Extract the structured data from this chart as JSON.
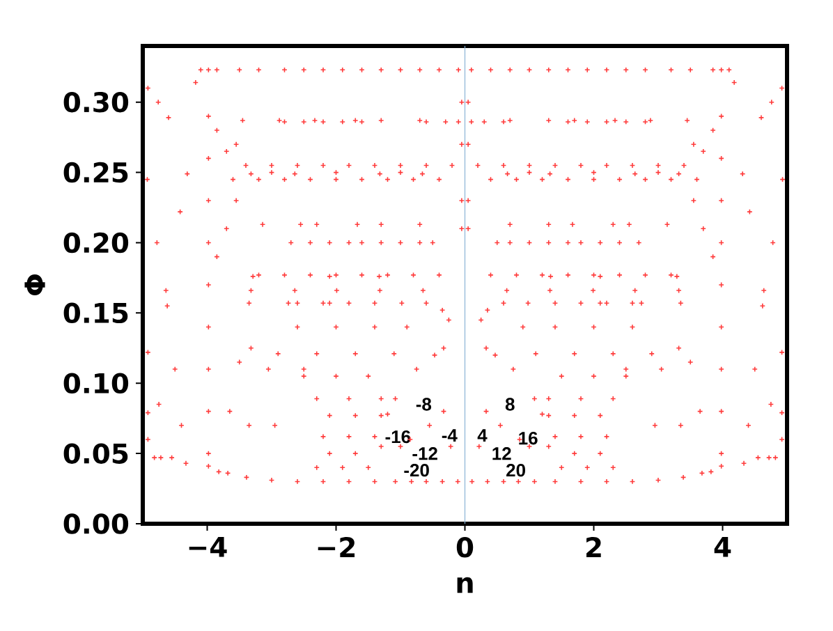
{
  "chart_data": {
    "type": "scatter",
    "xlabel": "n",
    "ylabel": "Φ",
    "color": "#ff3b3b",
    "marker": "cross",
    "xlim": [
      -5,
      5
    ],
    "ylim": [
      0,
      0.34
    ],
    "xticks": [
      {
        "value": -4,
        "label": "−4"
      },
      {
        "value": -2,
        "label": "−2"
      },
      0,
      2,
      4
    ],
    "yticks": [
      {
        "value": 0,
        "label": "0.00"
      },
      {
        "value": 0.05,
        "label": "0.05"
      },
      {
        "value": 0.1,
        "label": "0.10"
      },
      {
        "value": 0.15,
        "label": "0.15"
      },
      {
        "value": 0.2,
        "label": "0.20"
      },
      {
        "value": 0.25,
        "label": "0.25"
      },
      {
        "value": 0.3,
        "label": "0.30"
      }
    ],
    "ref_lines": [
      {
        "axis": "x",
        "value": 0,
        "color": "#8ab4d6"
      }
    ],
    "annotations": [
      "-8",
      "8",
      "-16",
      "-4",
      "4",
      "16",
      "-12",
      "12",
      "-20",
      "20"
    ],
    "x": [
      -3.85,
      -3.5,
      -3.2,
      -2.8,
      -2.5,
      -2.2,
      -1.9,
      -1.6,
      -1.3,
      -1.0,
      -0.7,
      -0.4,
      -0.1,
      -3.98,
      -3.98,
      -3.98,
      -3.98,
      -3.98,
      -3.98,
      -3.98,
      -3.98,
      -3.98,
      -3.98,
      -3.98,
      -3.4,
      -3.0,
      -2.6,
      -2.2,
      -1.8,
      -1.4,
      -1.0,
      -0.6,
      -0.2,
      -3.6,
      -3.2,
      -2.8,
      -2.4,
      -2.0,
      -1.6,
      -1.2,
      -0.8,
      -0.4,
      -2.7,
      -2.4,
      -2.1,
      -1.8,
      -1.6,
      -1.3,
      -1.0,
      -0.7,
      -0.5,
      -2.8,
      -2.5,
      -2.2,
      -1.9,
      -1.6,
      -0.6,
      -0.3,
      -0.1,
      -3.2,
      -2.8,
      -2.4,
      -2.0,
      -1.6,
      -1.2,
      -0.8,
      -0.4,
      -4.64,
      -3.32,
      -2.64,
      -1.99,
      -1.32,
      -0.65,
      -4.31,
      -3.32,
      -2.64,
      -1.32,
      -0.66,
      -4.42,
      -4.93,
      -4.78,
      -4.62,
      -4.5,
      -4.4,
      -4.33,
      -4.92,
      -4.76,
      -4.6,
      -4.18,
      -4.1,
      -4.92,
      -4.75,
      -4.55,
      -4.92,
      -4.72,
      -4.92,
      -4.82,
      -3.35,
      -3.5,
      -3.65,
      -3.82,
      -2.74,
      -3.05,
      -3.35,
      -3.68,
      -2.1,
      -2.5,
      -2.95,
      -3.39,
      -0.6,
      -0.47,
      -0.33,
      -0.22,
      -0.11,
      -0.98,
      -0.75,
      -0.55,
      -0.35,
      -1.08,
      -0.85,
      -0.6,
      -1.2,
      -1.0,
      -0.83,
      -1.3,
      -1.08,
      -3.0,
      -2.6,
      -2.2,
      -1.8,
      -1.4,
      -2.6,
      -2.2,
      -1.8,
      -1.4,
      -2.6,
      -2.0,
      -1.4,
      -0.9,
      -2.9,
      -2.3,
      -1.7,
      -1.1,
      -2.5,
      -2.0,
      -1.5,
      -2.3,
      -1.8,
      -1.3,
      -2.1,
      -1.7,
      -1.3,
      -2.2,
      -1.8,
      -1.4,
      -2.1,
      -1.7,
      -2.3,
      -1.9,
      -1.5,
      -3.32,
      -2.33,
      -2.0,
      -1.67,
      -1.33,
      -1.7,
      -2.3,
      -1.3,
      -1.0,
      -0.7,
      -0.7,
      -1.3,
      -3.45,
      -3.0,
      -2.55,
      -2.1,
      -2.88,
      -3.14,
      -3.29,
      -0.05,
      -0.05,
      -0.05,
      -0.05,
      -0.35,
      -0.25,
      -0.33,
      -3.85,
      -3.7,
      -3.55,
      -3.85,
      -3.7,
      -3.55,
      3.85,
      3.5,
      3.2,
      2.8,
      2.5,
      2.2,
      1.9,
      1.6,
      1.3,
      1.0,
      0.7,
      0.4,
      0.1,
      3.98,
      3.98,
      3.98,
      3.98,
      3.98,
      3.98,
      3.98,
      3.98,
      3.98,
      3.98,
      3.98,
      3.4,
      3.0,
      2.6,
      2.2,
      1.8,
      1.4,
      1.0,
      0.6,
      0.2,
      3.6,
      3.2,
      2.8,
      2.4,
      2.0,
      1.6,
      1.2,
      0.8,
      0.4,
      2.7,
      2.4,
      2.1,
      1.8,
      1.6,
      1.3,
      1.0,
      0.7,
      0.5,
      2.8,
      2.5,
      2.2,
      1.9,
      1.6,
      0.6,
      0.3,
      0.1,
      3.2,
      2.8,
      2.4,
      2.0,
      1.6,
      1.2,
      0.8,
      0.4,
      4.64,
      3.32,
      2.64,
      1.99,
      1.32,
      0.65,
      4.31,
      3.32,
      2.64,
      1.32,
      0.66,
      4.42,
      4.93,
      4.78,
      4.62,
      4.5,
      4.4,
      4.33,
      4.92,
      4.76,
      4.6,
      4.18,
      4.1,
      4.92,
      4.75,
      4.55,
      4.92,
      4.72,
      4.92,
      4.82,
      3.35,
      3.5,
      3.65,
      3.82,
      2.74,
      3.05,
      3.35,
      3.68,
      2.1,
      2.5,
      2.95,
      3.39,
      0.6,
      0.47,
      0.33,
      0.22,
      0.11,
      0.98,
      0.75,
      0.55,
      0.35,
      1.08,
      0.85,
      0.6,
      1.2,
      1.0,
      0.83,
      1.3,
      1.08,
      3.0,
      2.6,
      2.2,
      1.8,
      1.4,
      2.6,
      2.2,
      1.8,
      1.4,
      2.6,
      2.0,
      1.4,
      0.9,
      2.9,
      2.3,
      1.7,
      1.1,
      2.5,
      2.0,
      1.5,
      2.3,
      1.8,
      1.3,
      2.1,
      1.7,
      1.3,
      2.2,
      1.8,
      1.4,
      2.1,
      1.7,
      2.3,
      1.9,
      1.5,
      3.32,
      2.33,
      2.0,
      1.67,
      1.33,
      1.7,
      2.3,
      1.3,
      1.0,
      0.7,
      0.7,
      1.3,
      3.45,
      3.0,
      2.55,
      2.1,
      2.88,
      3.14,
      3.29,
      0.05,
      0.05,
      0.05,
      0.05,
      0.35,
      0.25,
      0.33,
      3.85,
      3.7,
      3.55,
      3.85,
      3.7,
      3.55
    ],
    "values": [
      0.323,
      0.323,
      0.323,
      0.323,
      0.323,
      0.323,
      0.323,
      0.323,
      0.323,
      0.323,
      0.323,
      0.323,
      0.323,
      0.323,
      0.29,
      0.26,
      0.23,
      0.2,
      0.17,
      0.14,
      0.11,
      0.08,
      0.05,
      0.041,
      0.255,
      0.255,
      0.255,
      0.255,
      0.255,
      0.255,
      0.255,
      0.255,
      0.255,
      0.245,
      0.245,
      0.245,
      0.245,
      0.245,
      0.245,
      0.245,
      0.245,
      0.245,
      0.2,
      0.2,
      0.2,
      0.2,
      0.2,
      0.2,
      0.2,
      0.2,
      0.2,
      0.286,
      0.286,
      0.286,
      0.286,
      0.286,
      0.286,
      0.286,
      0.286,
      0.177,
      0.177,
      0.177,
      0.177,
      0.177,
      0.177,
      0.177,
      0.177,
      0.166,
      0.166,
      0.166,
      0.166,
      0.166,
      0.166,
      0.249,
      0.249,
      0.249,
      0.249,
      0.249,
      0.222,
      0.245,
      0.2,
      0.155,
      0.11,
      0.07,
      0.043,
      0.31,
      0.3,
      0.289,
      0.314,
      0.323,
      0.122,
      0.085,
      0.047,
      0.079,
      0.047,
      0.06,
      0.047,
      0.157,
      0.115,
      0.08,
      0.037,
      0.157,
      0.11,
      0.07,
      0.036,
      0.157,
      0.11,
      0.07,
      0.033,
      0.157,
      0.12,
      0.08,
      0.055,
      0.03,
      0.157,
      0.11,
      0.07,
      0.03,
      0.089,
      0.06,
      0.03,
      0.078,
      0.055,
      0.03,
      0.055,
      0.03,
      0.031,
      0.03,
      0.03,
      0.03,
      0.03,
      0.157,
      0.157,
      0.157,
      0.157,
      0.14,
      0.14,
      0.14,
      0.14,
      0.121,
      0.121,
      0.121,
      0.121,
      0.105,
      0.105,
      0.105,
      0.089,
      0.089,
      0.089,
      0.077,
      0.077,
      0.077,
      0.062,
      0.062,
      0.062,
      0.05,
      0.05,
      0.04,
      0.04,
      0.04,
      0.125,
      0.287,
      0.25,
      0.213,
      0.176,
      0.287,
      0.213,
      0.287,
      0.25,
      0.213,
      0.287,
      0.213,
      0.287,
      0.25,
      0.213,
      0.176,
      0.287,
      0.213,
      0.176,
      0.3,
      0.27,
      0.23,
      0.21,
      0.152,
      0.145,
      0.125,
      0.19,
      0.21,
      0.23,
      0.28,
      0.265,
      0.27,
      0.323,
      0.323,
      0.323,
      0.323,
      0.323,
      0.323,
      0.323,
      0.323,
      0.323,
      0.323,
      0.323,
      0.323,
      0.323,
      0.323,
      0.29,
      0.26,
      0.23,
      0.2,
      0.17,
      0.14,
      0.11,
      0.08,
      0.05,
      0.041,
      0.255,
      0.255,
      0.255,
      0.255,
      0.255,
      0.255,
      0.255,
      0.255,
      0.255,
      0.245,
      0.245,
      0.245,
      0.245,
      0.245,
      0.245,
      0.245,
      0.245,
      0.245,
      0.2,
      0.2,
      0.2,
      0.2,
      0.2,
      0.2,
      0.2,
      0.2,
      0.2,
      0.286,
      0.286,
      0.286,
      0.286,
      0.286,
      0.286,
      0.286,
      0.286,
      0.177,
      0.177,
      0.177,
      0.177,
      0.177,
      0.177,
      0.177,
      0.177,
      0.166,
      0.166,
      0.166,
      0.166,
      0.166,
      0.166,
      0.249,
      0.249,
      0.249,
      0.249,
      0.249,
      0.222,
      0.245,
      0.2,
      0.155,
      0.11,
      0.07,
      0.043,
      0.31,
      0.3,
      0.289,
      0.314,
      0.323,
      0.122,
      0.085,
      0.047,
      0.079,
      0.047,
      0.06,
      0.047,
      0.157,
      0.115,
      0.08,
      0.037,
      0.157,
      0.11,
      0.07,
      0.036,
      0.157,
      0.11,
      0.07,
      0.033,
      0.157,
      0.12,
      0.08,
      0.055,
      0.03,
      0.157,
      0.11,
      0.07,
      0.03,
      0.089,
      0.06,
      0.03,
      0.078,
      0.055,
      0.03,
      0.055,
      0.03,
      0.031,
      0.03,
      0.03,
      0.03,
      0.03,
      0.157,
      0.157,
      0.157,
      0.157,
      0.14,
      0.14,
      0.14,
      0.14,
      0.121,
      0.121,
      0.121,
      0.121,
      0.105,
      0.105,
      0.105,
      0.089,
      0.089,
      0.089,
      0.077,
      0.077,
      0.077,
      0.062,
      0.062,
      0.062,
      0.05,
      0.05,
      0.04,
      0.04,
      0.04,
      0.125,
      0.287,
      0.25,
      0.213,
      0.176,
      0.287,
      0.213,
      0.287,
      0.25,
      0.213,
      0.287,
      0.213,
      0.287,
      0.25,
      0.213,
      0.176,
      0.287,
      0.213,
      0.176,
      0.3,
      0.27,
      0.23,
      0.21,
      0.152,
      0.145,
      0.125,
      0.19,
      0.21,
      0.23,
      0.28,
      0.265,
      0.27
    ]
  }
}
